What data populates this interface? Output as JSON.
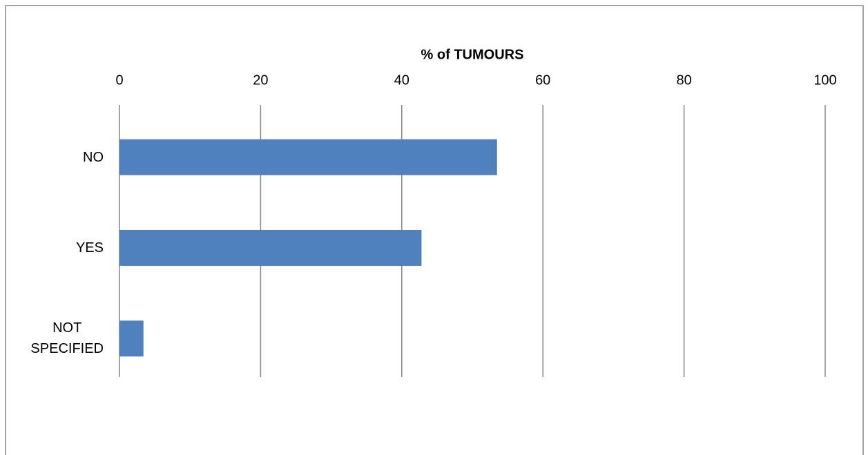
{
  "chart_data": {
    "type": "bar",
    "orientation": "horizontal",
    "x_label": "% of TUMOURS",
    "categories": [
      "NO",
      "YES",
      "NOT SPECIFIED"
    ],
    "values": [
      53.5,
      42.8,
      3.4
    ],
    "color": "#4f81bd",
    "xlim": [
      0,
      100
    ],
    "xticks": [
      0,
      20,
      40,
      60,
      80,
      100
    ],
    "grid": true
  }
}
